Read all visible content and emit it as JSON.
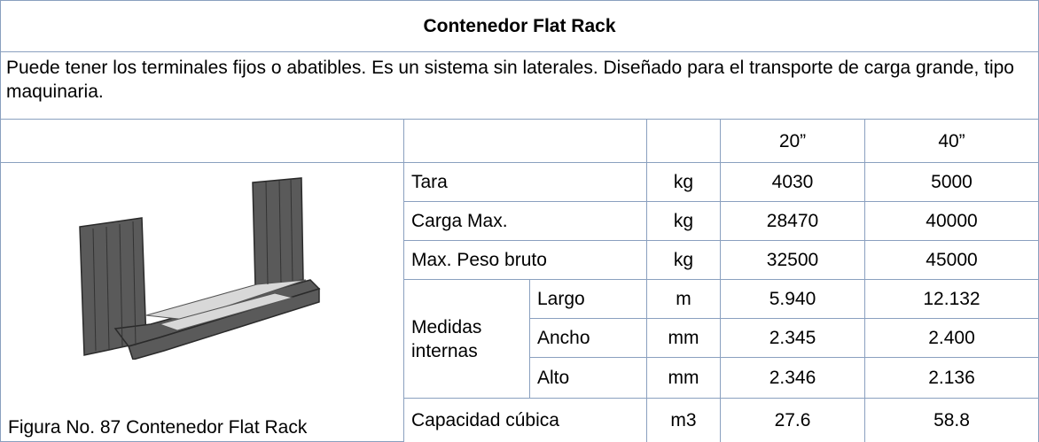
{
  "table": {
    "title": "Contenedor Flat Rack",
    "description": "Puede tener los terminales fijos o abatibles. Es un sistema sin laterales. Diseñado para el transporte de carga grande, tipo maquinaria.",
    "column_headers": [
      "20”",
      "40”"
    ],
    "figure_caption": "Figura No. 87 Contenedor Flat Rack",
    "rows": [
      {
        "label": "Tara",
        "unit": "kg",
        "values": [
          "4030",
          "5000"
        ]
      },
      {
        "label": "Carga Max.",
        "unit": "kg",
        "values": [
          "28470",
          "40000"
        ]
      },
      {
        "label": "Max. Peso bruto",
        "unit": "kg",
        "values": [
          "32500",
          "45000"
        ]
      }
    ],
    "group": {
      "label": "Medidas internas",
      "rows": [
        {
          "label": "Largo",
          "unit": "m",
          "values": [
            "5.940",
            "12.132"
          ]
        },
        {
          "label": "Ancho",
          "unit": "mm",
          "values": [
            "2.345",
            "2.400"
          ]
        },
        {
          "label": "Alto",
          "unit": "mm",
          "values": [
            "2.346",
            "2.136"
          ]
        }
      ]
    },
    "last_row": {
      "label": "Capacidad cúbica",
      "unit": "m3",
      "values": [
        "27.6",
        "58.8"
      ]
    }
  }
}
